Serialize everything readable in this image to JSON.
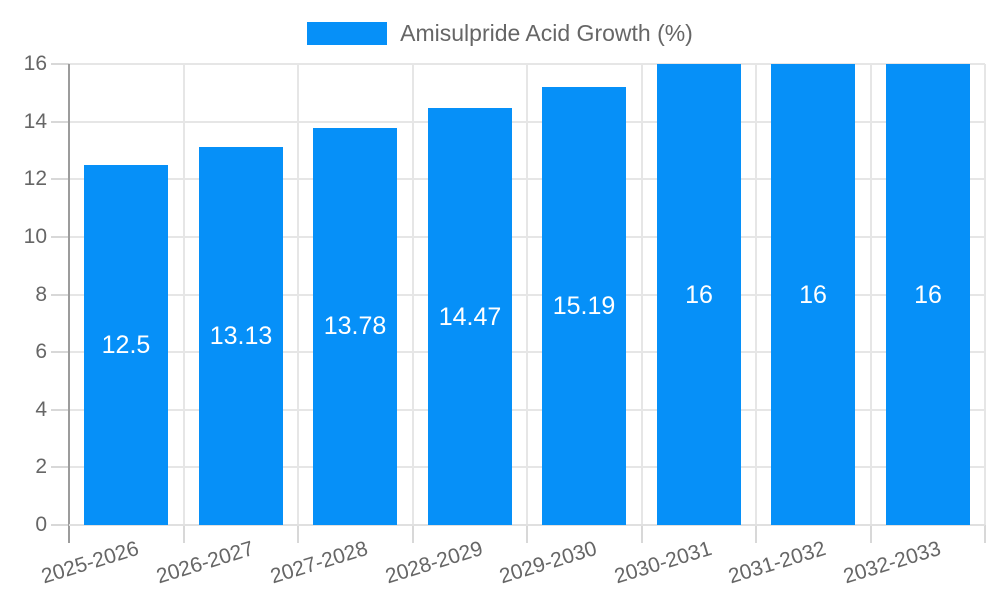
{
  "chart_data": {
    "type": "bar",
    "title": "",
    "legend_label": "Amisulpride Acid Growth (%)",
    "legend_position": "top",
    "categories": [
      "2025-2026",
      "2026-2027",
      "2027-2028",
      "2028-2029",
      "2029-2030",
      "2030-2031",
      "2031-2032",
      "2032-2033"
    ],
    "values": [
      12.5,
      13.13,
      13.78,
      14.47,
      15.19,
      16,
      16,
      16
    ],
    "value_labels": [
      "12.5",
      "13.13",
      "13.78",
      "14.47",
      "15.19",
      "16",
      "16",
      "16"
    ],
    "xlabel": "",
    "ylabel": "",
    "ylim": [
      0,
      16
    ],
    "yticks": [
      "0",
      "2",
      "4",
      "6",
      "8",
      "10",
      "12",
      "14",
      "16"
    ],
    "grid": true,
    "x_label_rotation_deg": -17,
    "colors": {
      "bar": "#0690f8",
      "value_label": "#ffffff",
      "tick_text": "#666666",
      "legend_text": "#666666",
      "gridline": "#e6e6e6",
      "y_axis_line": "#9c9c9c",
      "x_axis_line": "#e0e0e0",
      "tick_mark": "#d8d8d8",
      "background": "#ffffff"
    }
  }
}
